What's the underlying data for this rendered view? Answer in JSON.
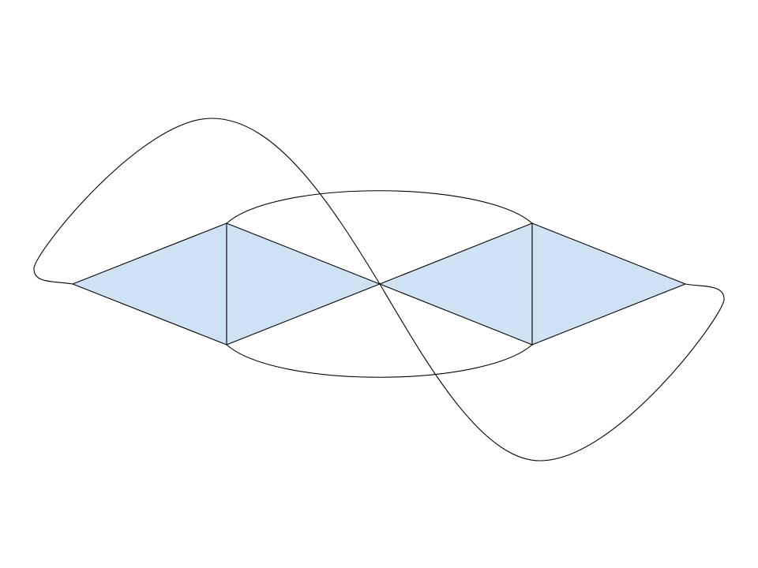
{
  "diagram": {
    "colors": {
      "face_fill": "#cfe2f3",
      "stroke": "#000000",
      "background": "#ffffff"
    },
    "vertex_count": 7,
    "shaded_face_count": 4,
    "curved_edge_count": 4
  }
}
